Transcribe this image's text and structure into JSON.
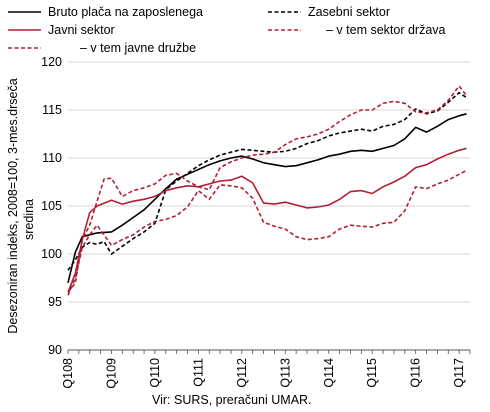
{
  "chart_data": {
    "type": "line",
    "ylabel_lines": [
      "Desezoniran indeks, 2008=100, 3-mes.drseča",
      "sredina"
    ],
    "ylim": [
      90,
      120
    ],
    "yticks": [
      90,
      95,
      100,
      105,
      110,
      115,
      120
    ],
    "x_range": [
      2008.0,
      2017.25
    ],
    "xticks": [
      {
        "x": 2008.0,
        "label": "Q108"
      },
      {
        "x": 2009.0,
        "label": "Q109"
      },
      {
        "x": 2010.0,
        "label": "Q110"
      },
      {
        "x": 2011.0,
        "label": "Q111"
      },
      {
        "x": 2012.0,
        "label": "Q112"
      },
      {
        "x": 2013.0,
        "label": "Q113"
      },
      {
        "x": 2014.0,
        "label": "Q114"
      },
      {
        "x": 2015.0,
        "label": "Q115"
      },
      {
        "x": 2016.0,
        "label": "Q116"
      },
      {
        "x": 2017.0,
        "label": "Q117"
      }
    ],
    "grid": {
      "horizontal": true,
      "vertical": false
    },
    "legend_placement": "top",
    "source": "Vir: SURS, preračuni UMAR.",
    "series": [
      {
        "name": "Bruto plača na zaposlenega",
        "color": "#000000",
        "style": "solid",
        "points": [
          [
            2008.0,
            97.0
          ],
          [
            2008.17,
            100.2
          ],
          [
            2008.33,
            101.8
          ],
          [
            2008.5,
            102.0
          ],
          [
            2008.67,
            102.2
          ],
          [
            2009.0,
            102.3
          ],
          [
            2009.25,
            103.0
          ],
          [
            2009.5,
            103.8
          ],
          [
            2009.75,
            104.6
          ],
          [
            2010.0,
            105.7
          ],
          [
            2010.25,
            106.8
          ],
          [
            2010.5,
            107.8
          ],
          [
            2010.75,
            108.3
          ],
          [
            2011.0,
            108.8
          ],
          [
            2011.25,
            109.3
          ],
          [
            2011.5,
            109.7
          ],
          [
            2011.75,
            110.0
          ],
          [
            2012.0,
            110.2
          ],
          [
            2012.25,
            109.9
          ],
          [
            2012.5,
            109.5
          ],
          [
            2012.75,
            109.3
          ],
          [
            2013.0,
            109.1
          ],
          [
            2013.25,
            109.2
          ],
          [
            2013.5,
            109.5
          ],
          [
            2013.75,
            109.8
          ],
          [
            2014.0,
            110.2
          ],
          [
            2014.25,
            110.4
          ],
          [
            2014.5,
            110.7
          ],
          [
            2014.75,
            110.8
          ],
          [
            2015.0,
            110.7
          ],
          [
            2015.25,
            111.0
          ],
          [
            2015.5,
            111.3
          ],
          [
            2015.75,
            112.0
          ],
          [
            2016.0,
            113.2
          ],
          [
            2016.25,
            112.7
          ],
          [
            2016.5,
            113.3
          ],
          [
            2016.75,
            114.0
          ],
          [
            2017.0,
            114.4
          ],
          [
            2017.17,
            114.6
          ]
        ]
      },
      {
        "name": "Zasebni sektor",
        "color": "#000000",
        "style": "dashed",
        "points": [
          [
            2008.0,
            98.3
          ],
          [
            2008.17,
            99.4
          ],
          [
            2008.33,
            100.7
          ],
          [
            2008.5,
            101.2
          ],
          [
            2008.67,
            101.0
          ],
          [
            2008.83,
            101.3
          ],
          [
            2009.0,
            100.0
          ],
          [
            2009.25,
            100.8
          ],
          [
            2009.5,
            101.6
          ],
          [
            2009.75,
            102.3
          ],
          [
            2010.0,
            103.2
          ],
          [
            2010.25,
            106.7
          ],
          [
            2010.5,
            107.6
          ],
          [
            2010.75,
            108.4
          ],
          [
            2011.0,
            109.2
          ],
          [
            2011.25,
            109.8
          ],
          [
            2011.5,
            110.3
          ],
          [
            2011.75,
            110.6
          ],
          [
            2012.0,
            110.9
          ],
          [
            2012.25,
            110.8
          ],
          [
            2012.5,
            110.7
          ],
          [
            2012.75,
            110.6
          ],
          [
            2013.0,
            110.7
          ],
          [
            2013.25,
            111.0
          ],
          [
            2013.5,
            111.5
          ],
          [
            2013.75,
            111.8
          ],
          [
            2014.0,
            112.3
          ],
          [
            2014.25,
            112.6
          ],
          [
            2014.5,
            112.8
          ],
          [
            2014.75,
            113.0
          ],
          [
            2015.0,
            112.8
          ],
          [
            2015.25,
            113.3
          ],
          [
            2015.5,
            113.5
          ],
          [
            2015.75,
            114.0
          ],
          [
            2016.0,
            115.1
          ],
          [
            2016.25,
            114.6
          ],
          [
            2016.5,
            114.9
          ],
          [
            2016.75,
            115.8
          ],
          [
            2017.0,
            116.8
          ],
          [
            2017.17,
            116.3
          ]
        ]
      },
      {
        "name": "Javni sektor",
        "color": "#b21f34",
        "style": "solid",
        "points": [
          [
            2008.0,
            96.0
          ],
          [
            2008.17,
            98.0
          ],
          [
            2008.33,
            101.5
          ],
          [
            2008.5,
            104.3
          ],
          [
            2008.67,
            105.0
          ],
          [
            2009.0,
            105.6
          ],
          [
            2009.25,
            105.2
          ],
          [
            2009.5,
            105.5
          ],
          [
            2009.75,
            105.7
          ],
          [
            2010.0,
            106.0
          ],
          [
            2010.25,
            106.6
          ],
          [
            2010.5,
            106.9
          ],
          [
            2010.75,
            107.1
          ],
          [
            2011.0,
            107.0
          ],
          [
            2011.25,
            107.3
          ],
          [
            2011.5,
            107.6
          ],
          [
            2011.75,
            107.7
          ],
          [
            2012.0,
            108.1
          ],
          [
            2012.25,
            107.4
          ],
          [
            2012.5,
            105.3
          ],
          [
            2012.75,
            105.2
          ],
          [
            2013.0,
            105.4
          ],
          [
            2013.25,
            105.1
          ],
          [
            2013.5,
            104.8
          ],
          [
            2013.75,
            104.9
          ],
          [
            2014.0,
            105.1
          ],
          [
            2014.25,
            105.7
          ],
          [
            2014.5,
            106.5
          ],
          [
            2014.75,
            106.6
          ],
          [
            2015.0,
            106.3
          ],
          [
            2015.25,
            107.0
          ],
          [
            2015.5,
            107.5
          ],
          [
            2015.75,
            108.1
          ],
          [
            2016.0,
            109.0
          ],
          [
            2016.25,
            109.3
          ],
          [
            2016.5,
            109.9
          ],
          [
            2016.75,
            110.4
          ],
          [
            2017.0,
            110.8
          ],
          [
            2017.17,
            111.0
          ]
        ]
      },
      {
        "name": "– v tem sektor država",
        "color": "#b21f34",
        "style": "dashed",
        "points": [
          [
            2008.0,
            96.0
          ],
          [
            2008.17,
            97.0
          ],
          [
            2008.33,
            101.5
          ],
          [
            2008.5,
            103.0
          ],
          [
            2008.67,
            105.5
          ],
          [
            2008.83,
            107.8
          ],
          [
            2009.0,
            107.9
          ],
          [
            2009.25,
            106.0
          ],
          [
            2009.5,
            106.6
          ],
          [
            2009.75,
            106.9
          ],
          [
            2010.0,
            107.3
          ],
          [
            2010.25,
            108.2
          ],
          [
            2010.5,
            108.4
          ],
          [
            2010.75,
            107.6
          ],
          [
            2011.0,
            107.0
          ],
          [
            2011.25,
            106.7
          ],
          [
            2011.5,
            109.0
          ],
          [
            2011.75,
            109.6
          ],
          [
            2012.0,
            110.0
          ],
          [
            2012.25,
            110.3
          ],
          [
            2012.5,
            110.4
          ],
          [
            2012.75,
            110.6
          ],
          [
            2013.0,
            111.4
          ],
          [
            2013.25,
            112.0
          ],
          [
            2013.5,
            112.2
          ],
          [
            2013.75,
            112.5
          ],
          [
            2014.0,
            113.0
          ],
          [
            2014.25,
            113.8
          ],
          [
            2014.5,
            114.5
          ],
          [
            2014.75,
            115.0
          ],
          [
            2015.0,
            115.0
          ],
          [
            2015.25,
            115.7
          ],
          [
            2015.5,
            115.9
          ],
          [
            2015.75,
            115.7
          ],
          [
            2016.0,
            114.8
          ],
          [
            2016.25,
            114.7
          ],
          [
            2016.5,
            115.0
          ],
          [
            2016.75,
            116.0
          ],
          [
            2017.0,
            117.5
          ],
          [
            2017.17,
            116.5
          ]
        ]
      },
      {
        "name": "– v tem javne družbe",
        "color": "#b21f34",
        "style": "dashed",
        "points": [
          [
            2008.0,
            95.7
          ],
          [
            2008.17,
            97.5
          ],
          [
            2008.33,
            100.7
          ],
          [
            2008.5,
            102.0
          ],
          [
            2008.67,
            103.0
          ],
          [
            2009.0,
            100.9
          ],
          [
            2009.25,
            101.5
          ],
          [
            2009.5,
            102.0
          ],
          [
            2009.75,
            102.8
          ],
          [
            2010.0,
            103.4
          ],
          [
            2010.25,
            103.6
          ],
          [
            2010.5,
            104.0
          ],
          [
            2010.75,
            104.9
          ],
          [
            2011.0,
            106.6
          ],
          [
            2011.25,
            105.7
          ],
          [
            2011.5,
            107.2
          ],
          [
            2011.75,
            107.1
          ],
          [
            2012.0,
            106.9
          ],
          [
            2012.25,
            105.8
          ],
          [
            2012.5,
            103.3
          ],
          [
            2012.75,
            102.9
          ],
          [
            2013.0,
            102.6
          ],
          [
            2013.25,
            101.8
          ],
          [
            2013.5,
            101.5
          ],
          [
            2013.75,
            101.6
          ],
          [
            2014.0,
            101.8
          ],
          [
            2014.25,
            102.6
          ],
          [
            2014.5,
            103.0
          ],
          [
            2014.75,
            102.9
          ],
          [
            2015.0,
            102.8
          ],
          [
            2015.25,
            103.2
          ],
          [
            2015.5,
            103.3
          ],
          [
            2015.75,
            104.5
          ],
          [
            2016.0,
            107.0
          ],
          [
            2016.25,
            106.8
          ],
          [
            2016.5,
            107.3
          ],
          [
            2016.75,
            107.7
          ],
          [
            2017.0,
            108.3
          ],
          [
            2017.17,
            108.7
          ]
        ]
      }
    ]
  }
}
